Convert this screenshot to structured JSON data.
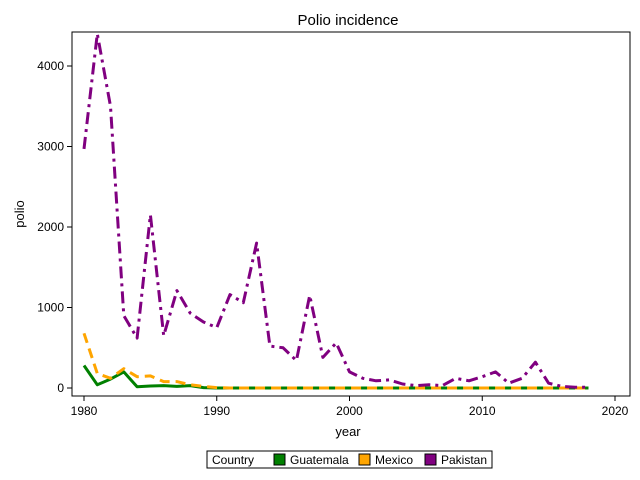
{
  "chart_data": {
    "type": "line",
    "title": "Polio incidence",
    "xlabel": "year",
    "ylabel": "polio",
    "xlim": [
      1980,
      2020
    ],
    "ylim": [
      -50,
      4400
    ],
    "xticks": [
      1980,
      1990,
      2000,
      2010,
      2020
    ],
    "yticks": [
      0,
      1000,
      2000,
      3000,
      4000
    ],
    "grid": false,
    "legend": {
      "title": "Country",
      "placement": "bottom-center"
    },
    "x": [
      1980,
      1981,
      1982,
      1983,
      1984,
      1985,
      1986,
      1987,
      1988,
      1989,
      1990,
      1991,
      1992,
      1993,
      1994,
      1995,
      1996,
      1997,
      1998,
      1999,
      2000,
      2001,
      2002,
      2003,
      2004,
      2005,
      2006,
      2007,
      2008,
      2009,
      2010,
      2011,
      2012,
      2013,
      2014,
      2015,
      2016,
      2017,
      2018
    ],
    "series": [
      {
        "name": "Guatemala",
        "color": "#008000",
        "dash": "solid",
        "values": [
          280,
          40,
          110,
          200,
          15,
          25,
          30,
          20,
          30,
          5,
          0,
          0,
          0,
          0,
          0,
          0,
          0,
          0,
          0,
          0,
          0,
          0,
          0,
          0,
          0,
          0,
          0,
          0,
          0,
          0,
          0,
          0,
          0,
          0,
          0,
          0,
          0,
          0,
          0
        ]
      },
      {
        "name": "Mexico",
        "color": "#FFA500",
        "dash": "dash",
        "values": [
          680,
          180,
          120,
          240,
          140,
          150,
          80,
          80,
          40,
          20,
          5,
          0,
          0,
          0,
          0,
          0,
          0,
          0,
          0,
          0,
          0,
          0,
          0,
          0,
          0,
          0,
          0,
          0,
          0,
          0,
          0,
          0,
          0,
          0,
          0,
          0,
          0,
          0,
          0
        ]
      },
      {
        "name": "Pakistan",
        "color": "#800080",
        "dash": "dashdot",
        "values": [
          2970,
          4400,
          3500,
          900,
          620,
          2150,
          650,
          1210,
          930,
          820,
          750,
          1160,
          1060,
          1800,
          520,
          500,
          340,
          1150,
          380,
          560,
          200,
          120,
          90,
          100,
          50,
          30,
          40,
          30,
          120,
          90,
          140,
          200,
          60,
          120,
          320,
          60,
          20,
          10,
          10
        ]
      }
    ]
  }
}
